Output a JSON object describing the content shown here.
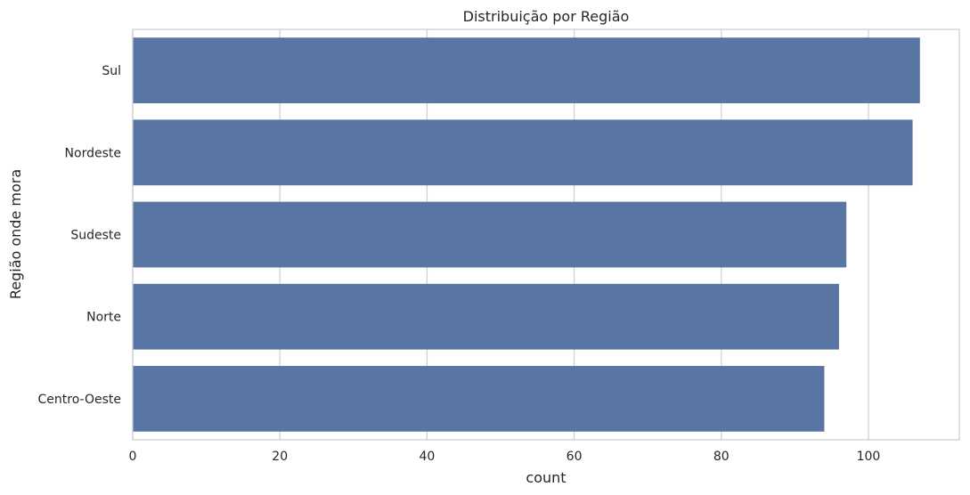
{
  "chart_data": {
    "type": "bar",
    "orientation": "horizontal",
    "title": "Distribuição por Região",
    "xlabel": "count",
    "ylabel": "Região onde mora",
    "categories": [
      "Sul",
      "Nordeste",
      "Sudeste",
      "Norte",
      "Centro-Oeste"
    ],
    "values": [
      107,
      106,
      97,
      96,
      94
    ],
    "xlim": [
      0,
      112.35
    ],
    "xticks": [
      0,
      20,
      40,
      60,
      80,
      100
    ],
    "grid": true,
    "colors": {
      "bar": "#5875a4",
      "grid": "#d0d0d0",
      "axes": "#cccccc",
      "text": "#262626"
    }
  }
}
